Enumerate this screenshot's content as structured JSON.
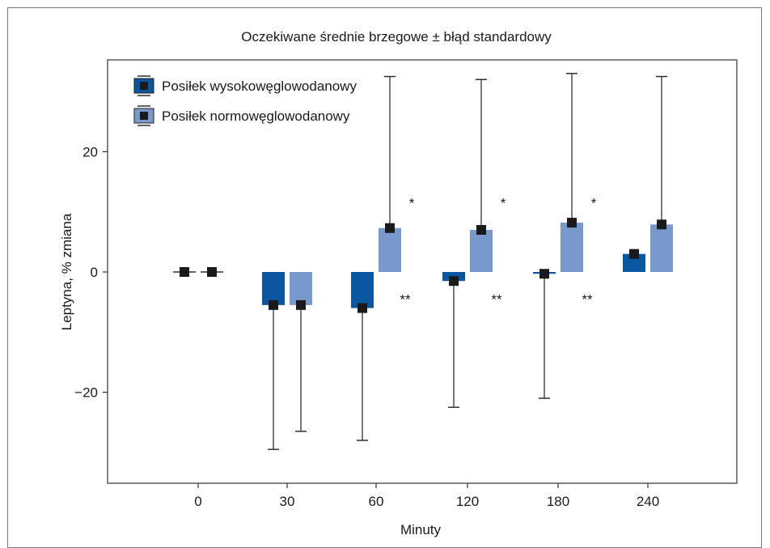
{
  "chart_data": {
    "type": "bar",
    "title": "Oczekiwane średnie brzegowe ± błąd standardowy",
    "xlabel": "Minuty",
    "ylabel": "Leptyna, % zmiana",
    "categories": [
      "0",
      "30",
      "60",
      "120",
      "180",
      "240"
    ],
    "ylim": [
      -35,
      33
    ],
    "yticks": [
      -20,
      0,
      20
    ],
    "ytick_labels": [
      "−20",
      "0",
      "20"
    ],
    "grid": false,
    "legend_position": "top-left",
    "series": [
      {
        "name": "Posiłek wysokowęglowodanowy",
        "color": "#0a56a0",
        "values": [
          0,
          -5.5,
          -6,
          -1.5,
          -0.3,
          3
        ],
        "error_low": [
          0,
          -29.5,
          -28,
          -22.5,
          -21,
          3
        ],
        "error_high": [
          0,
          -5.5,
          -6,
          -1.5,
          -0.3,
          3
        ]
      },
      {
        "name": "Posiłek normowęglowodanowy",
        "color": "#7799cc",
        "values": [
          0,
          -5.5,
          7.3,
          7.0,
          8.2,
          7.9
        ],
        "error_low": [
          0,
          -26.5,
          7.3,
          7.0,
          8.2,
          7.9
        ],
        "error_high": [
          0,
          -5.5,
          32.5,
          32,
          33,
          32.5
        ]
      }
    ],
    "annotations": [
      {
        "category": "60",
        "series": 1,
        "text": "*",
        "y": 11.5
      },
      {
        "category": "120",
        "series": 1,
        "text": "*",
        "y": 11.5
      },
      {
        "category": "180",
        "series": 1,
        "text": "*",
        "y": 11.5
      },
      {
        "category": "60",
        "series": 0,
        "text": "**",
        "y": -4.5
      },
      {
        "category": "120",
        "series": 0,
        "text": "**",
        "y": -4.5
      },
      {
        "category": "180",
        "series": 0,
        "text": "**",
        "y": -4.5
      }
    ]
  }
}
